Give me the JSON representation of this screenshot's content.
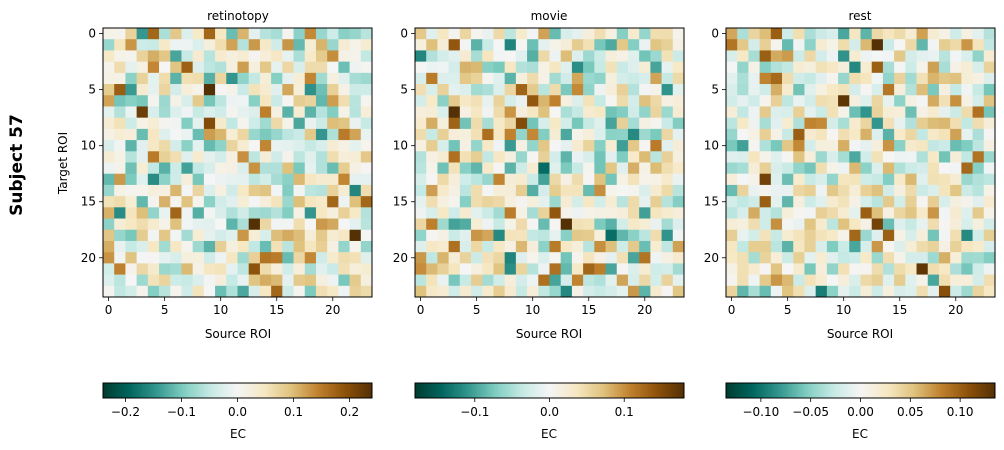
{
  "figure": {
    "row_label": "Subject 57"
  },
  "chart_data": [
    {
      "type": "heatmap",
      "title": "retinotopy",
      "xlabel": "Source ROI",
      "ylabel": "Target ROI",
      "n_rows": 24,
      "n_cols": 24,
      "x_ticks": [
        0,
        5,
        10,
        15,
        20
      ],
      "y_ticks": [
        0,
        5,
        10,
        15,
        20
      ],
      "colormap": "BrBG_r",
      "colorbar": {
        "label": "EC",
        "min": -0.24,
        "max": 0.24,
        "ticks": [
          -0.2,
          -0.1,
          0.0,
          0.1,
          0.2
        ],
        "tick_labels": [
          "−0.2",
          "−0.1",
          "0.0",
          "0.1",
          "0.2"
        ]
      },
      "notable_cells": [
        {
          "row": 0,
          "col": 4,
          "value": 0.17
        },
        {
          "row": 0,
          "col": 9,
          "value": 0.17
        },
        {
          "row": 3,
          "col": 4,
          "value": 0.14
        },
        {
          "row": 4,
          "col": 6,
          "value": -0.12
        },
        {
          "row": 5,
          "col": 1,
          "value": 0.18
        },
        {
          "row": 5,
          "col": 9,
          "value": 0.24
        },
        {
          "row": 7,
          "col": 3,
          "value": 0.22
        },
        {
          "row": 8,
          "col": 9,
          "value": 0.2
        },
        {
          "row": 8,
          "col": 17,
          "value": -0.13
        },
        {
          "row": 9,
          "col": 21,
          "value": 0.15
        },
        {
          "row": 11,
          "col": 4,
          "value": 0.15
        },
        {
          "row": 12,
          "col": 17,
          "value": -0.1
        },
        {
          "row": 15,
          "col": 20,
          "value": 0.17
        },
        {
          "row": 15,
          "col": 23,
          "value": 0.17
        },
        {
          "row": 17,
          "col": 13,
          "value": 0.24
        },
        {
          "row": 18,
          "col": 22,
          "value": 0.24
        },
        {
          "row": 19,
          "col": 9,
          "value": -0.12
        },
        {
          "row": 20,
          "col": 15,
          "value": 0.15
        },
        {
          "row": 21,
          "col": 13,
          "value": 0.19
        },
        {
          "row": 23,
          "col": 15,
          "value": 0.17
        }
      ]
    },
    {
      "type": "heatmap",
      "title": "movie",
      "xlabel": "Source ROI",
      "ylabel": "",
      "n_rows": 24,
      "n_cols": 24,
      "x_ticks": [
        0,
        5,
        10,
        15,
        20
      ],
      "y_ticks": [
        0,
        5,
        10,
        15,
        20
      ],
      "colormap": "BrBG_r",
      "colorbar": {
        "label": "EC",
        "min": -0.18,
        "max": 0.18,
        "ticks": [
          -0.1,
          0.0,
          0.1
        ],
        "tick_labels": [
          "−0.1",
          "0.0",
          "0.1"
        ]
      },
      "notable_cells": [
        {
          "row": 1,
          "col": 3,
          "value": 0.14
        },
        {
          "row": 5,
          "col": 9,
          "value": 0.13
        },
        {
          "row": 6,
          "col": 10,
          "value": 0.14
        },
        {
          "row": 7,
          "col": 3,
          "value": 0.18
        },
        {
          "row": 8,
          "col": 9,
          "value": 0.15
        },
        {
          "row": 11,
          "col": 3,
          "value": 0.12
        },
        {
          "row": 14,
          "col": 16,
          "value": 0.1
        },
        {
          "row": 16,
          "col": 12,
          "value": 0.14
        },
        {
          "row": 17,
          "col": 13,
          "value": 0.18
        },
        {
          "row": 19,
          "col": 3,
          "value": 0.12
        },
        {
          "row": 21,
          "col": 12,
          "value": 0.12
        },
        {
          "row": 21,
          "col": 16,
          "value": 0.11
        },
        {
          "row": 22,
          "col": 11,
          "value": 0.12
        }
      ]
    },
    {
      "type": "heatmap",
      "title": "rest",
      "xlabel": "Source ROI",
      "ylabel": "",
      "n_rows": 24,
      "n_cols": 24,
      "x_ticks": [
        0,
        5,
        10,
        15,
        20
      ],
      "y_ticks": [
        0,
        5,
        10,
        15,
        20
      ],
      "colormap": "BrBG_r",
      "colorbar": {
        "label": "EC",
        "min": -0.135,
        "max": 0.135,
        "ticks": [
          -0.1,
          -0.05,
          0.0,
          0.05,
          0.1
        ],
        "tick_labels": [
          "−0.10",
          "−0.05",
          "0.00",
          "0.05",
          "0.10"
        ]
      },
      "notable_cells": [
        {
          "row": 0,
          "col": 4,
          "value": 0.1
        },
        {
          "row": 1,
          "col": 13,
          "value": 0.135
        },
        {
          "row": 2,
          "col": 3,
          "value": 0.1
        },
        {
          "row": 3,
          "col": 13,
          "value": 0.1
        },
        {
          "row": 4,
          "col": 3,
          "value": 0.08
        },
        {
          "row": 6,
          "col": 10,
          "value": 0.13
        },
        {
          "row": 8,
          "col": 7,
          "value": 0.08
        },
        {
          "row": 13,
          "col": 3,
          "value": 0.12
        },
        {
          "row": 15,
          "col": 3,
          "value": 0.1
        },
        {
          "row": 16,
          "col": 12,
          "value": 0.1
        },
        {
          "row": 17,
          "col": 13,
          "value": 0.12
        },
        {
          "row": 18,
          "col": 14,
          "value": 0.1
        },
        {
          "row": 21,
          "col": 17,
          "value": 0.13
        },
        {
          "row": 23,
          "col": 19,
          "value": 0.11
        }
      ]
    }
  ]
}
